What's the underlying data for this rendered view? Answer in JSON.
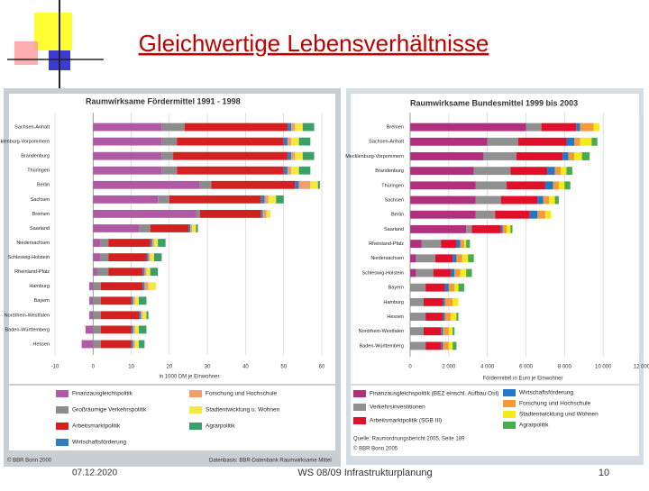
{
  "slide": {
    "title": "Gleichwertige Lebensverhältnisse",
    "date": "07.12.2020",
    "footer": "WS 08/09 Infrastrukturplanung",
    "page": "10",
    "left_copyright": "© BBR Bonn 2000",
    "left_source": "Datenbasis: BBR-Datenbank Raumwirksame Mittel",
    "right_source": "Quelle: Raumordnungsbericht 2005, Seite 189",
    "right_copyright": "© BBR Bonn 2005"
  },
  "chart_data": [
    {
      "type": "hbar-stacked",
      "title": "Raumwirksame Fördermittel 1991 - 1998",
      "x_label": "in 1000 DM je Einwohner",
      "categories": [
        "Sachsen-Anhalt",
        "Mecklenburg-Vorpommern",
        "Brandenburg",
        "Thüringen",
        "Berlin",
        "Sachsen",
        "Bremen",
        "Saarland",
        "Niedersachsen",
        "Schleswig-Holstein",
        "Rheinland-Pfalz",
        "Hamburg",
        "Bayern",
        "Nordrhein-Westfalen",
        "Baden-Württemberg",
        "Hessen"
      ],
      "series": [
        {
          "name": "Finanzausgleichspolitik",
          "color": "#b05aa6",
          "values": [
            18,
            18,
            18,
            18,
            28,
            17,
            27,
            12,
            2,
            2,
            1,
            -1,
            -1,
            -1,
            -2,
            -3
          ]
        },
        {
          "name": "Großräumige Verkehrspolitik",
          "color": "#8c8c8c",
          "values": [
            6,
            4,
            3,
            4,
            3,
            3,
            1,
            3,
            2,
            2,
            3,
            2,
            2,
            2,
            2,
            2
          ]
        },
        {
          "name": "Arbeitsmarktpolitik",
          "color": "#d42020",
          "values": [
            27,
            28,
            30,
            28,
            22,
            24,
            16,
            10,
            11,
            10,
            9,
            11,
            8,
            10,
            8,
            8
          ]
        },
        {
          "name": "Wirtschaftsförderung",
          "color": "#2e7fc1",
          "values": [
            1,
            1,
            1,
            1,
            1,
            1,
            0.5,
            0.5,
            0.5,
            0.5,
            0.5,
            0.5,
            0.5,
            0.5,
            0.5,
            0.5
          ]
        },
        {
          "name": "Forschung und Hochschule",
          "color": "#f0a070",
          "values": [
            1,
            1,
            1,
            1,
            3,
            1,
            1,
            0.5,
            0.5,
            0.5,
            0.5,
            1,
            0.5,
            0.5,
            0.5,
            0.5
          ]
        },
        {
          "name": "Stadtentwicklung u. Wohnen",
          "color": "#f5e842",
          "values": [
            2,
            2,
            2,
            2,
            2,
            2,
            1,
            1,
            1,
            1,
            1,
            2,
            1,
            1,
            1,
            1
          ]
        },
        {
          "name": "Agrarpolitik",
          "color": "#3aa068",
          "values": [
            3,
            3,
            3,
            3,
            0.5,
            2,
            0,
            0.5,
            2,
            2,
            2,
            0,
            2,
            0.5,
            2,
            1.5
          ]
        }
      ],
      "xlim": [
        -10,
        60
      ],
      "xticks": [
        -10,
        0,
        10,
        20,
        30,
        40,
        50,
        60
      ],
      "grid": true
    },
    {
      "type": "hbar-stacked",
      "title": "Raumwirksame Bundesmittel 1999 bis 2003",
      "x_label": "Fördermittel in Euro je Einwohner",
      "categories": [
        "Bremen",
        "Sachsen-Anhalt",
        "Mecklenburg-Vorpommern",
        "Brandenburg",
        "Thüringen",
        "Sachsen",
        "Berlin",
        "Saarland",
        "Rheinland-Pfalz",
        "Niedersachsen",
        "Schleswig-Holstein",
        "Bayern",
        "Hamburg",
        "Hessen",
        "Nordrhein-Westfalen",
        "Baden-Württemberg"
      ],
      "series": [
        {
          "name": "Finanzausgleichspolitik (BEZ einschl. Aufbau Ost)",
          "color": "#b0307e",
          "values": [
            6000,
            4000,
            3800,
            3300,
            3400,
            3400,
            3400,
            2900,
            600,
            300,
            300,
            0,
            0,
            0,
            0,
            0
          ]
        },
        {
          "name": "Verkehrsinvestitionen",
          "color": "#909090",
          "values": [
            800,
            1600,
            1700,
            1900,
            1600,
            1300,
            1000,
            300,
            1000,
            1000,
            900,
            800,
            700,
            800,
            700,
            800
          ]
        },
        {
          "name": "Arbeitsmarktpolitik (SGB III)",
          "color": "#e0102a",
          "values": [
            1800,
            2500,
            2400,
            1900,
            2000,
            1900,
            1800,
            1500,
            800,
            900,
            900,
            1000,
            1000,
            900,
            900,
            800
          ]
        },
        {
          "name": "Wirtschaftsförderung",
          "color": "#1f78c8",
          "values": [
            200,
            400,
            300,
            400,
            400,
            300,
            400,
            100,
            200,
            200,
            200,
            200,
            100,
            100,
            100,
            100
          ]
        },
        {
          "name": "Forschung und Hochschule",
          "color": "#f39a3a",
          "values": [
            700,
            300,
            300,
            300,
            300,
            300,
            400,
            200,
            200,
            300,
            300,
            300,
            400,
            300,
            300,
            300
          ]
        },
        {
          "name": "Stadtentwicklung und Wohnen",
          "color": "#f7ea1a",
          "values": [
            300,
            600,
            400,
            300,
            300,
            300,
            300,
            200,
            100,
            300,
            300,
            200,
            300,
            300,
            200,
            200
          ]
        },
        {
          "name": "Agrarpolitik",
          "color": "#4aaa50",
          "values": [
            0,
            300,
            400,
            300,
            300,
            200,
            0,
            100,
            200,
            300,
            300,
            300,
            0,
            100,
            100,
            200
          ]
        }
      ],
      "xlim": [
        0,
        12000
      ],
      "xticks": [
        0,
        {
          "value": 2000,
          "label": "2 000"
        },
        {
          "value": 4000,
          "label": "4 000"
        },
        {
          "value": 6000,
          "label": "6 000"
        },
        {
          "value": 8000,
          "label": "8 000"
        },
        {
          "value": 10000,
          "label": "10 000"
        },
        {
          "value": 12000,
          "label": "12 000"
        }
      ],
      "grid": true
    }
  ]
}
